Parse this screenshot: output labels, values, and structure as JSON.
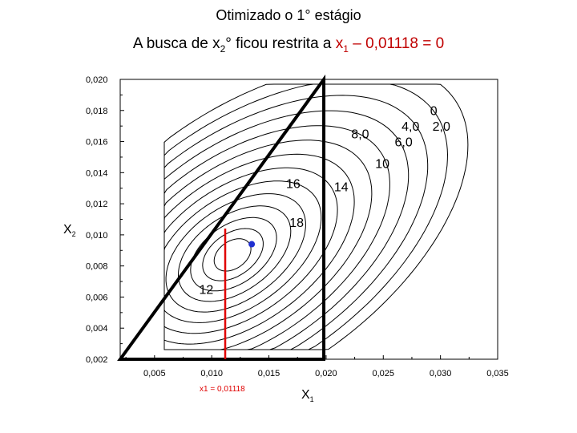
{
  "title": "Otimizado o 1° estágio",
  "subtitle": {
    "prefix": "A busca de x",
    "sub_a": "2",
    "mid": "° ficou restrita a ",
    "red_var": "x",
    "sub_b": "1",
    "red_rest": " – 0,01118 = 0"
  },
  "chart_data": {
    "type": "contour",
    "xlabel": "X1",
    "ylabel": "X2",
    "xlim": [
      0.002,
      0.035
    ],
    "ylim": [
      0.002,
      0.02
    ],
    "x_ticks": [
      "0,005",
      "0,010",
      "0,015",
      "0,020",
      "0,025",
      "0,030",
      "0,035"
    ],
    "x_tick_values": [
      0.005,
      0.01,
      0.015,
      0.02,
      0.025,
      0.03,
      0.035
    ],
    "y_ticks": [
      "0,002",
      "0,004",
      "0,006",
      "0,008",
      "0,010",
      "0,012",
      "0,014",
      "0,016",
      "0,018",
      "0,020"
    ],
    "y_tick_values": [
      0.002,
      0.004,
      0.006,
      0.008,
      0.01,
      0.012,
      0.014,
      0.016,
      0.018,
      0.02
    ],
    "contour_labels": [
      {
        "text": "0",
        "x": 0.0291,
        "y": 0.0177
      },
      {
        "text": "4,0",
        "x": 0.0266,
        "y": 0.0167
      },
      {
        "text": "2,0",
        "x": 0.0293,
        "y": 0.0167
      },
      {
        "text": "8,0",
        "x": 0.0222,
        "y": 0.0162
      },
      {
        "text": "6,0",
        "x": 0.026,
        "y": 0.0157
      },
      {
        "text": "10",
        "x": 0.0243,
        "y": 0.0143
      },
      {
        "text": "16",
        "x": 0.0165,
        "y": 0.013
      },
      {
        "text": "14",
        "x": 0.0207,
        "y": 0.0128
      },
      {
        "text": "18",
        "x": 0.0168,
        "y": 0.0105
      },
      {
        "text": "12",
        "x": 0.0089,
        "y": 0.0062
      }
    ],
    "optimum": {
      "x": 0.0135,
      "y": 0.0094,
      "color": "#1f2fd0"
    },
    "constraint": {
      "label": "x1 = 0,01118",
      "x": 0.01118,
      "y_from": 0.002,
      "y_to": 0.0104,
      "color": "#e00000"
    },
    "triangle": [
      [
        0.002,
        0.002
      ],
      [
        0.0198,
        0.02
      ],
      [
        0.0198,
        0.002
      ]
    ]
  }
}
